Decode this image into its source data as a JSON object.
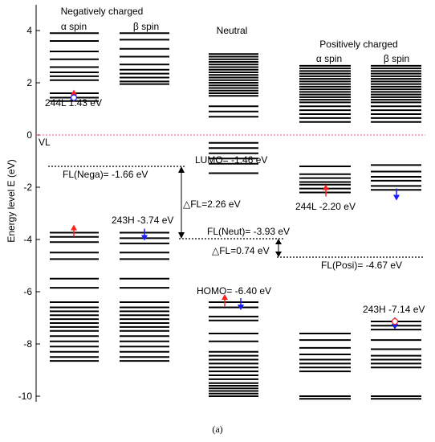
{
  "chart_data": {
    "type": "energy-level diagram",
    "ylabel": "Energy level E (eV)",
    "ylim": [
      -10,
      5
    ],
    "yticks": [
      "4",
      "2",
      "0",
      "-2",
      "-4",
      "-6",
      "-8",
      "-10"
    ],
    "caption": "(a)",
    "groups": {
      "negative": "Negatively charged",
      "neutral": "Neutral",
      "positive": "Positively charged"
    },
    "spin_labels": {
      "alpha": "α  spin",
      "beta": "β  spin"
    },
    "vacuum_level": {
      "label": "VL",
      "energy": 0,
      "color": "#ff4d6d"
    },
    "columns": [
      {
        "id": "neg-alpha",
        "levels": [
          3.9,
          3.6,
          3.2,
          2.9,
          2.6,
          2.4,
          2.25,
          2.1,
          1.6,
          1.43,
          1.3
        ]
      },
      {
        "id": "neg-beta",
        "levels": [
          3.9,
          3.65,
          3.3,
          3.0,
          2.7,
          2.5,
          2.35,
          2.2,
          2.05,
          1.95
        ]
      },
      {
        "id": "neutral",
        "levels": [
          3.1,
          3.0,
          2.9,
          2.8,
          2.7,
          2.6,
          2.5,
          2.4,
          2.3,
          2.2,
          2.1,
          2.0,
          1.9,
          1.8,
          1.7,
          1.6,
          1.5,
          1.1,
          0.9,
          0.7
        ],
        "unoccupied_low": [
          -0.3,
          -0.5,
          -0.7,
          -0.9,
          -1.1,
          -1.46
        ]
      },
      {
        "id": "pos-alpha",
        "levels": [
          2.65,
          2.55,
          2.45,
          2.35,
          2.25,
          2.15,
          2.05,
          1.95,
          1.85,
          1.75,
          1.65,
          1.55,
          1.45,
          1.35,
          1.25,
          1.1,
          0.95,
          0.8,
          0.65,
          0.5
        ]
      },
      {
        "id": "pos-beta",
        "levels": [
          2.65,
          2.55,
          2.45,
          2.35,
          2.25,
          2.15,
          2.05,
          1.95,
          1.85,
          1.75,
          1.65,
          1.55,
          1.45,
          1.35,
          1.25,
          1.1,
          0.95,
          0.8,
          0.65,
          0.5
        ]
      }
    ],
    "occupied": [
      {
        "id": "neg-alpha",
        "levels": [
          -3.74,
          -3.9,
          -4.1,
          -4.5,
          -4.75,
          -5.5,
          -5.85,
          -6.4,
          -6.6,
          -6.75,
          -6.9,
          -7.05,
          -7.2,
          -7.35,
          -7.5,
          -7.7,
          -7.9,
          -8.1,
          -8.3,
          -8.5,
          -8.65
        ]
      },
      {
        "id": "neg-beta",
        "levels": [
          -3.74,
          -3.95,
          -4.15,
          -4.5,
          -4.75,
          -5.5,
          -5.85,
          -6.4,
          -6.6,
          -6.75,
          -6.9,
          -7.05,
          -7.2,
          -7.35,
          -7.5,
          -7.7,
          -7.9,
          -8.1,
          -8.3,
          -8.5,
          -8.65
        ]
      },
      {
        "id": "neutral",
        "levels": [
          -6.4,
          -6.6,
          -6.95,
          -7.1,
          -7.6,
          -7.9,
          -8.3,
          -8.45,
          -8.6,
          -8.75,
          -8.9,
          -9.05,
          -9.2,
          -9.35,
          -9.5,
          -9.6,
          -9.7,
          -9.8,
          -9.9,
          -10.0
        ]
      },
      {
        "id": "pos-alpha",
        "unoccupied_low": [
          -1.2,
          -1.5,
          -1.65,
          -1.8,
          -1.9,
          -2.05,
          -2.2
        ],
        "levels": [
          -7.6,
          -7.85,
          -8.15,
          -8.4,
          -8.6,
          -8.75,
          -8.9,
          -9.05,
          -10.0,
          -10.1
        ]
      },
      {
        "id": "pos-beta",
        "unoccupied_low": [
          -1.15,
          -1.4,
          -1.6,
          -1.75,
          -1.95,
          -2.1
        ],
        "levels": [
          -7.14,
          -7.3,
          -7.45,
          -7.85,
          -8.2,
          -8.45,
          -8.6,
          -8.75,
          -8.9,
          -10.0,
          -10.1
        ]
      }
    ],
    "fermi_levels": [
      {
        "label": "FL(Nega)= -1.66 eV",
        "energy": -1.66
      },
      {
        "label": "FL(Neut)= -3.93 eV",
        "energy": -3.93
      },
      {
        "label": "FL(Posi)= -4.67 eV",
        "energy": -4.67
      }
    ],
    "deltas": [
      {
        "label": "△FL=2.26 eV",
        "from": -1.66,
        "to": -3.93
      },
      {
        "label": "△FL=0.74 eV",
        "from": -3.93,
        "to": -4.67
      }
    ],
    "annotations": [
      {
        "label": "244L 1.43 eV",
        "energy": 1.43
      },
      {
        "label": "LUMO= -1.46 eV",
        "energy": -1.46
      },
      {
        "label": "244L -2.20 eV",
        "energy": -2.2
      },
      {
        "label": "243H -3.74 eV",
        "energy": -3.74
      },
      {
        "label": "HOMO= -6.40 eV",
        "energy": -6.4
      },
      {
        "label": "243H -7.14 eV",
        "energy": -7.14
      }
    ],
    "colors": {
      "up_arrow": "#ff2020",
      "down_arrow": "#1a1aff",
      "line": "#000000"
    }
  }
}
